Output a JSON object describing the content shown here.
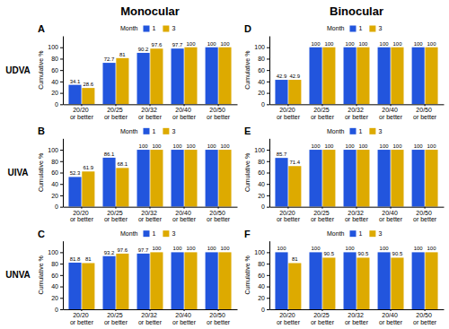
{
  "chart_data": [
    {
      "type": "bar",
      "title": "A",
      "y_label": "Cumulative %",
      "annotations": [
        "Month",
        "Monocular",
        "UDVA"
      ],
      "categories": [
        "20/20 or better",
        "20/25 or better",
        "20/32 or better",
        "20/40 or better",
        "20/50 or better"
      ],
      "series": [
        {
          "name": "1",
          "color": "#2255DD",
          "values": [
            34.1,
            72.7,
            90.2,
            97.7,
            100
          ]
        },
        {
          "name": "3",
          "color": "#DDAA00",
          "values": [
            28.6,
            81,
            97.6,
            100,
            100
          ]
        }
      ],
      "ylim": [
        0,
        120
      ],
      "yticks": [
        0,
        20,
        40,
        60,
        80,
        100
      ],
      "grid": false,
      "legend": "top",
      "data_labels": true
    },
    {
      "type": "bar",
      "title": "B",
      "y_label": "Cumulative %",
      "annotations": [
        "Month",
        "UIVA"
      ],
      "categories": [
        "20/20 or better",
        "20/25 or better",
        "20/32 or better",
        "20/40 or better",
        "20/50 or better"
      ],
      "series": [
        {
          "name": "1",
          "color": "#2255DD",
          "values": [
            52.3,
            86.1,
            100,
            100,
            100
          ]
        },
        {
          "name": "3",
          "color": "#DDAA00",
          "values": [
            61.9,
            68.1,
            100,
            100,
            100
          ]
        }
      ],
      "ylim": [
        0,
        120
      ],
      "yticks": [
        0,
        20,
        40,
        60,
        80,
        100
      ],
      "grid": false,
      "legend": "top",
      "data_labels": true
    },
    {
      "type": "bar",
      "title": "C",
      "y_label": "Cumulative %",
      "annotations": [
        "Month",
        "UNVA"
      ],
      "categories": [
        "20/20 or better",
        "20/25 or better",
        "20/32 or better",
        "20/40 or better",
        "20/50 or better"
      ],
      "series": [
        {
          "name": "1",
          "color": "#2255DD",
          "values": [
            81.8,
            93.2,
            97.7,
            100,
            100
          ]
        },
        {
          "name": "3",
          "color": "#DDAA00",
          "values": [
            81,
            97.6,
            100,
            100,
            100
          ]
        }
      ],
      "ylim": [
        0,
        120
      ],
      "yticks": [
        0,
        20,
        40,
        60,
        80,
        100
      ],
      "grid": false,
      "legend": "top",
      "data_labels": true
    },
    {
      "type": "bar",
      "title": "D",
      "y_label": "Cumulative %",
      "annotations": [
        "Month",
        "Binocular"
      ],
      "categories": [
        "20/20 or better",
        "20/25 or better",
        "20/32 or better",
        "20/40 or better",
        "20/50 or better"
      ],
      "series": [
        {
          "name": "1",
          "color": "#2255DD",
          "values": [
            42.9,
            100,
            100,
            100,
            100
          ]
        },
        {
          "name": "3",
          "color": "#DDAA00",
          "values": [
            42.9,
            100,
            100,
            100,
            100
          ]
        }
      ],
      "ylim": [
        0,
        120
      ],
      "yticks": [
        0,
        20,
        40,
        60,
        80,
        100
      ],
      "grid": false,
      "legend": "top",
      "data_labels": true
    },
    {
      "type": "bar",
      "title": "E",
      "y_label": "Cumulative %",
      "annotations": [
        "Month"
      ],
      "categories": [
        "20/20 or better",
        "20/25 or better",
        "20/32 or better",
        "20/40 or better",
        "20/50 or better"
      ],
      "series": [
        {
          "name": "1",
          "color": "#2255DD",
          "values": [
            85.7,
            100,
            100,
            100,
            100
          ]
        },
        {
          "name": "3",
          "color": "#DDAA00",
          "values": [
            71.4,
            100,
            100,
            100,
            100
          ]
        }
      ],
      "ylim": [
        0,
        120
      ],
      "yticks": [
        0,
        20,
        40,
        60,
        80,
        100
      ],
      "grid": false,
      "legend": "top",
      "data_labels": true
    },
    {
      "type": "bar",
      "title": "F",
      "y_label": "Cumulative %",
      "annotations": [
        "Month"
      ],
      "categories": [
        "20/20 or better",
        "20/25 or better",
        "20/32 or better",
        "20/40 or better",
        "20/50 or better"
      ],
      "series": [
        {
          "name": "1",
          "color": "#2255DD",
          "values": [
            100,
            100,
            100,
            100,
            100
          ]
        },
        {
          "name": "3",
          "color": "#DDAA00",
          "values": [
            81,
            90.5,
            90.5,
            90.5,
            100
          ]
        }
      ],
      "ylim": [
        0,
        120
      ],
      "yticks": [
        0,
        20,
        40,
        60,
        80,
        100
      ],
      "grid": false,
      "legend": "top",
      "data_labels": true
    }
  ]
}
